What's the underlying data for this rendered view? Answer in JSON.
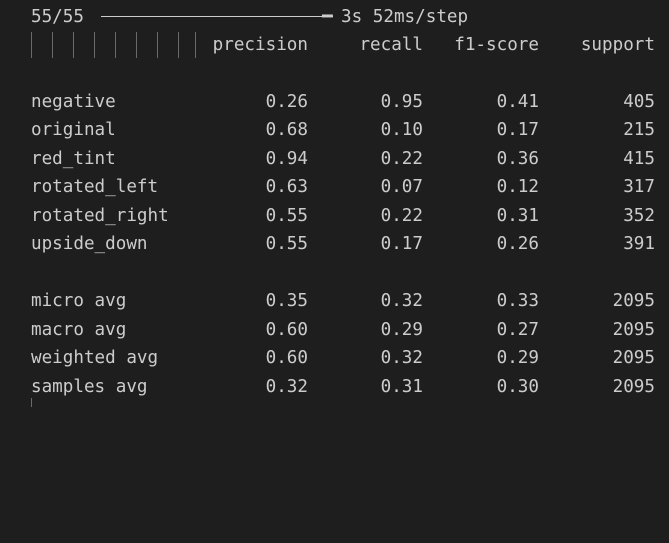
{
  "progress": {
    "count": "55/55",
    "bar_head": "━",
    "time": "3s 52ms/step",
    "fraction": 1.0
  },
  "report": {
    "headers": {
      "precision": "precision",
      "recall": "recall",
      "f1": "f1-score",
      "support": "support"
    },
    "classes": [
      {
        "label": "negative",
        "precision": "0.26",
        "recall": "0.95",
        "f1": "0.41",
        "support": "405"
      },
      {
        "label": "original",
        "precision": "0.68",
        "recall": "0.10",
        "f1": "0.17",
        "support": "215"
      },
      {
        "label": "red_tint",
        "precision": "0.94",
        "recall": "0.22",
        "f1": "0.36",
        "support": "415"
      },
      {
        "label": "rotated_left",
        "precision": "0.63",
        "recall": "0.07",
        "f1": "0.12",
        "support": "317"
      },
      {
        "label": "rotated_right",
        "precision": "0.55",
        "recall": "0.22",
        "f1": "0.31",
        "support": "352"
      },
      {
        "label": "upside_down",
        "precision": "0.55",
        "recall": "0.17",
        "f1": "0.26",
        "support": "391"
      }
    ],
    "averages": [
      {
        "label": "micro avg",
        "precision": "0.35",
        "recall": "0.32",
        "f1": "0.33",
        "support": "2095"
      },
      {
        "label": "macro avg",
        "precision": "0.60",
        "recall": "0.29",
        "f1": "0.27",
        "support": "2095"
      },
      {
        "label": "weighted avg",
        "precision": "0.60",
        "recall": "0.32",
        "f1": "0.29",
        "support": "2095"
      },
      {
        "label": "samples avg",
        "precision": "0.32",
        "recall": "0.31",
        "f1": "0.30",
        "support": "2095"
      }
    ]
  },
  "colors": {
    "background": "#1e1e1e",
    "text": "#cccccc",
    "guide": "#6a6a6a"
  }
}
